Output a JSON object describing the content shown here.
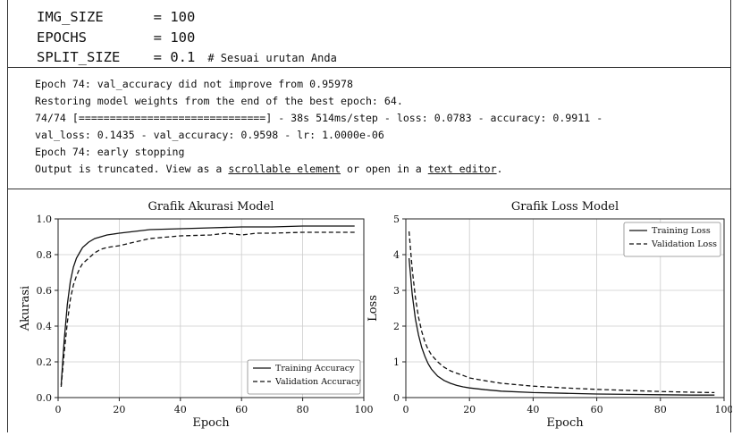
{
  "code": {
    "lines": [
      {
        "name": "IMG_SIZE",
        "eq": "= 100",
        "comment": ""
      },
      {
        "name": "EPOCHS",
        "eq": "= 100",
        "comment": ""
      },
      {
        "name": "SPLIT_SIZE",
        "eq": "= 0.1",
        "comment": "# Sesuai urutan Anda"
      }
    ]
  },
  "output": {
    "line1": "Epoch 74: val_accuracy did not improve from 0.95978",
    "line2": "Restoring model weights from the end of the best epoch: 64.",
    "line3": "74/74 [==============================] - 38s 514ms/step - loss: 0.0783 - accuracy: 0.9911 -",
    "line4": "val_loss: 0.1435 - val_accuracy: 0.9598 - lr: 1.0000e-06",
    "line5": "Epoch 74: early stopping",
    "truncated_prefix": "Output is truncated. View as a ",
    "link_scrollable": "scrollable element",
    "truncated_mid": " or open in a ",
    "link_text_editor": "text editor",
    "truncated_suffix": "."
  },
  "chart_data": [
    {
      "type": "line",
      "title": "Grafik Akurasi Model",
      "xlabel": "Epoch",
      "ylabel": "Akurasi",
      "xlim": [
        0,
        100
      ],
      "ylim": [
        0,
        1.0
      ],
      "xticks": [
        "0",
        "20",
        "40",
        "60",
        "80",
        "100"
      ],
      "yticks": [
        "0.0",
        "0.2",
        "0.4",
        "0.6",
        "0.8",
        "1.0"
      ],
      "legend_position": "bottom-right",
      "grid": true,
      "series": [
        {
          "name": "Training Accuracy",
          "style": "solid",
          "x": [
            1,
            2,
            3,
            4,
            5,
            6,
            7,
            8,
            10,
            12,
            14,
            16,
            18,
            20,
            25,
            30,
            40,
            50,
            60,
            70,
            80,
            90,
            97
          ],
          "y": [
            0.07,
            0.32,
            0.52,
            0.65,
            0.73,
            0.78,
            0.81,
            0.84,
            0.87,
            0.89,
            0.9,
            0.91,
            0.915,
            0.92,
            0.93,
            0.94,
            0.945,
            0.95,
            0.955,
            0.955,
            0.96,
            0.96,
            0.96
          ]
        },
        {
          "name": "Validation Accuracy",
          "style": "dashed",
          "x": [
            1,
            2,
            3,
            4,
            5,
            6,
            7,
            8,
            10,
            12,
            14,
            16,
            18,
            20,
            25,
            30,
            40,
            50,
            55,
            60,
            65,
            70,
            80,
            90,
            97
          ],
          "y": [
            0.06,
            0.25,
            0.42,
            0.55,
            0.63,
            0.68,
            0.72,
            0.75,
            0.78,
            0.81,
            0.83,
            0.84,
            0.845,
            0.85,
            0.87,
            0.89,
            0.905,
            0.91,
            0.92,
            0.91,
            0.92,
            0.92,
            0.925,
            0.925,
            0.925
          ]
        }
      ]
    },
    {
      "type": "line",
      "title": "Grafik Loss Model",
      "xlabel": "Epoch",
      "ylabel": "Loss",
      "xlim": [
        0,
        100
      ],
      "ylim": [
        0,
        5
      ],
      "xticks": [
        "0",
        "20",
        "40",
        "60",
        "80",
        "100"
      ],
      "yticks": [
        "0",
        "1",
        "2",
        "3",
        "4",
        "5"
      ],
      "legend_position": "top-right",
      "grid": true,
      "series": [
        {
          "name": "Training Loss",
          "style": "solid",
          "x": [
            1,
            2,
            3,
            4,
            5,
            6,
            7,
            8,
            10,
            12,
            14,
            16,
            18,
            20,
            25,
            30,
            40,
            50,
            60,
            70,
            80,
            90,
            97
          ],
          "y": [
            3.9,
            2.9,
            2.2,
            1.75,
            1.4,
            1.15,
            0.95,
            0.8,
            0.6,
            0.48,
            0.4,
            0.34,
            0.3,
            0.27,
            0.22,
            0.18,
            0.14,
            0.12,
            0.1,
            0.09,
            0.08,
            0.07,
            0.07
          ]
        },
        {
          "name": "Validation Loss",
          "style": "dashed",
          "x": [
            1,
            2,
            3,
            4,
            5,
            6,
            7,
            8,
            10,
            12,
            14,
            16,
            18,
            20,
            25,
            30,
            40,
            50,
            60,
            70,
            80,
            90,
            97
          ],
          "y": [
            4.65,
            3.6,
            2.8,
            2.25,
            1.85,
            1.55,
            1.35,
            1.2,
            1.0,
            0.85,
            0.75,
            0.68,
            0.62,
            0.55,
            0.47,
            0.4,
            0.32,
            0.27,
            0.23,
            0.2,
            0.17,
            0.15,
            0.14
          ]
        }
      ]
    }
  ]
}
